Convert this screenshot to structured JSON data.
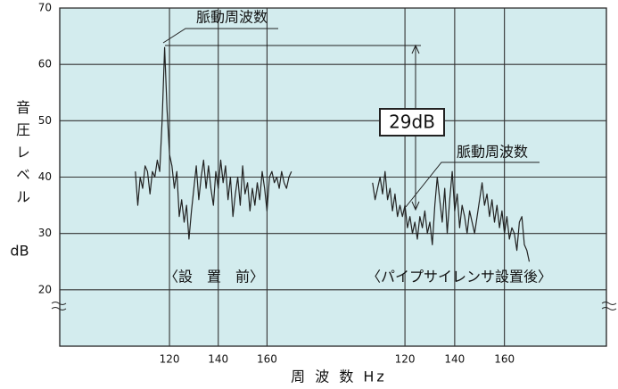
{
  "chart_data": [
    {
      "type": "line",
      "label": "〈設　置　前〉",
      "peak_annotation": "脈動周波数",
      "difference_annotation": "29dB",
      "ylabel": "音圧レベル",
      "yunit": "dB",
      "xlabel": "周 波 数 Hz",
      "xlim": [
        75,
        188
      ],
      "xticks": [
        120,
        140,
        160
      ],
      "ylim": [
        10,
        70
      ],
      "yticks": [
        20,
        30,
        40,
        50,
        60,
        70
      ],
      "grid": true,
      "color": "#222222",
      "x": [
        106,
        107,
        108,
        109,
        110,
        111,
        112,
        113,
        114,
        115,
        116,
        117,
        118,
        119,
        120,
        121,
        122,
        123,
        124,
        125,
        126,
        127,
        128,
        129,
        130,
        131,
        132,
        133,
        134,
        135,
        136,
        137,
        138,
        139,
        140,
        141,
        142,
        143,
        144,
        145,
        146,
        147,
        148,
        149,
        150,
        151,
        152,
        153,
        154,
        155,
        156,
        157,
        158,
        159,
        160,
        161,
        162,
        163,
        164,
        165,
        166,
        167,
        168,
        169,
        170
      ],
      "values": [
        41,
        35,
        40,
        38,
        42,
        41,
        37,
        41,
        40,
        43,
        41,
        50,
        63,
        52,
        44,
        42,
        38,
        41,
        33,
        36,
        32,
        35,
        29,
        34,
        38,
        42,
        36,
        40,
        43,
        38,
        42,
        38,
        35,
        41,
        38,
        43,
        39,
        42,
        36,
        40,
        33,
        37,
        40,
        35,
        42,
        37,
        39,
        34,
        38,
        35,
        39,
        36,
        41,
        38,
        34,
        40,
        41,
        39,
        40,
        38,
        41,
        39,
        38,
        40,
        41
      ]
    },
    {
      "type": "line",
      "label": "〈パイプサイレンサ設置後〉",
      "peak_annotation": "脈動周波数",
      "xlim": [
        92,
        201
      ],
      "xticks": [
        120,
        140,
        160
      ],
      "ylim": [
        10,
        70
      ],
      "grid": true,
      "color": "#222222",
      "x": [
        107,
        108,
        109,
        110,
        111,
        112,
        113,
        114,
        115,
        116,
        117,
        118,
        119,
        120,
        121,
        122,
        123,
        124,
        125,
        126,
        127,
        128,
        129,
        130,
        131,
        132,
        133,
        134,
        135,
        136,
        137,
        138,
        139,
        140,
        141,
        142,
        143,
        144,
        145,
        146,
        147,
        148,
        149,
        150,
        151,
        152,
        153,
        154,
        155,
        156,
        157,
        158,
        159,
        160,
        161,
        162,
        163,
        164,
        165,
        166,
        167,
        168,
        169,
        170
      ],
      "values": [
        39,
        36,
        38,
        40,
        37,
        41,
        36,
        38,
        34,
        37,
        33,
        35,
        33,
        35,
        31,
        33,
        30,
        32,
        29,
        33,
        31,
        34,
        30,
        32,
        28,
        35,
        40,
        36,
        32,
        38,
        30,
        36,
        41,
        34,
        37,
        31,
        35,
        33,
        30,
        34,
        32,
        30,
        33,
        36,
        39,
        35,
        37,
        33,
        36,
        32,
        35,
        31,
        34,
        30,
        33,
        29,
        31,
        30,
        27,
        32,
        33,
        28,
        27,
        25
      ]
    }
  ]
}
